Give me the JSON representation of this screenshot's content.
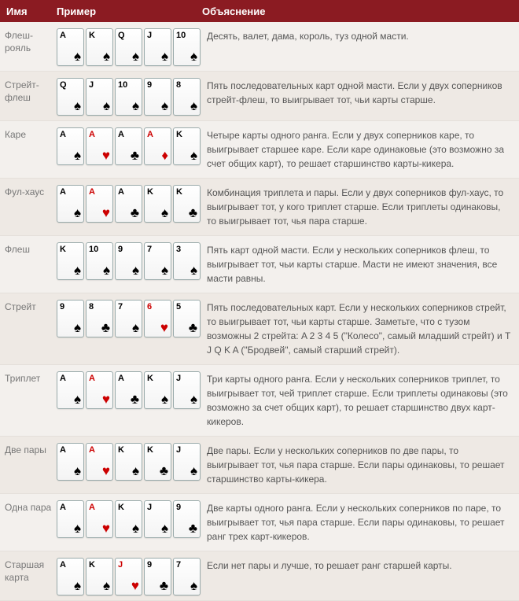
{
  "suits": {
    "s": "♠",
    "h": "♥",
    "d": "♦",
    "c": "♣"
  },
  "header": {
    "name": "Имя",
    "example": "Пример",
    "desc": "Объяснение"
  },
  "hands": [
    {
      "name": "Флеш-рояль",
      "cards": [
        {
          "r": "A",
          "s": "s"
        },
        {
          "r": "K",
          "s": "s"
        },
        {
          "r": "Q",
          "s": "s"
        },
        {
          "r": "J",
          "s": "s"
        },
        {
          "r": "10",
          "s": "s"
        }
      ],
      "desc": "Десять, валет, дама, король, туз одной масти."
    },
    {
      "name": "Стрейт-флеш",
      "cards": [
        {
          "r": "Q",
          "s": "s"
        },
        {
          "r": "J",
          "s": "s"
        },
        {
          "r": "10",
          "s": "s"
        },
        {
          "r": "9",
          "s": "s"
        },
        {
          "r": "8",
          "s": "s"
        }
      ],
      "desc": "Пять последовательных карт одной масти. Если у двух соперников стрейт-флеш, то выигрывает тот, чьи карты старше."
    },
    {
      "name": "Каре",
      "cards": [
        {
          "r": "A",
          "s": "s"
        },
        {
          "r": "A",
          "s": "h"
        },
        {
          "r": "A",
          "s": "c"
        },
        {
          "r": "A",
          "s": "d"
        },
        {
          "r": "K",
          "s": "s"
        }
      ],
      "desc": "Четыре карты одного ранга. Если у двух соперников каре, то выигрывает старшее каре. Если каре одинаковые (это возможно за счет общих карт), то решает старшинство карты-кикера."
    },
    {
      "name": "Фул-хаус",
      "cards": [
        {
          "r": "A",
          "s": "s"
        },
        {
          "r": "A",
          "s": "h"
        },
        {
          "r": "A",
          "s": "c"
        },
        {
          "r": "K",
          "s": "s"
        },
        {
          "r": "K",
          "s": "c"
        }
      ],
      "desc": "Комбинация триплета и пары. Если у двух соперников фул-хаус, то выигрывает тот, у кого триплет старше. Если триплеты одинаковы, то выигрывает тот, чья пара старше."
    },
    {
      "name": "Флеш",
      "cards": [
        {
          "r": "K",
          "s": "s"
        },
        {
          "r": "10",
          "s": "s"
        },
        {
          "r": "9",
          "s": "s"
        },
        {
          "r": "7",
          "s": "s"
        },
        {
          "r": "3",
          "s": "s"
        }
      ],
      "desc": "Пять карт одной масти. Если у нескольких соперников флеш, то выигрывает тот, чьи карты старше. Масти не имеют значения, все масти равны."
    },
    {
      "name": "Стрейт",
      "cards": [
        {
          "r": "9",
          "s": "s"
        },
        {
          "r": "8",
          "s": "c"
        },
        {
          "r": "7",
          "s": "s"
        },
        {
          "r": "6",
          "s": "h"
        },
        {
          "r": "5",
          "s": "c"
        }
      ],
      "desc": "Пять последовательных карт. Если у нескольких соперников стрейт, то выигрывает тот, чьи карты старше. Заметьте, что с тузом возможны 2 стрейта: A 2 3 4 5 (\"Колесо\", самый младший стрейт) и T J Q K A (\"Бродвей\", самый старший стрейт)."
    },
    {
      "name": "Триплет",
      "cards": [
        {
          "r": "A",
          "s": "s"
        },
        {
          "r": "A",
          "s": "h"
        },
        {
          "r": "A",
          "s": "c"
        },
        {
          "r": "K",
          "s": "s"
        },
        {
          "r": "J",
          "s": "s"
        }
      ],
      "desc": "Три карты одного ранга. Если у нескольких соперников триплет, то выигрывает тот, чей триплет старше. Если триплеты одинаковы (это возможно за счет общих карт), то решает старшинство двух карт-кикеров."
    },
    {
      "name": "Две пары",
      "cards": [
        {
          "r": "A",
          "s": "s"
        },
        {
          "r": "A",
          "s": "h"
        },
        {
          "r": "K",
          "s": "s"
        },
        {
          "r": "K",
          "s": "c"
        },
        {
          "r": "J",
          "s": "s"
        }
      ],
      "desc": "Две пары. Если у нескольких соперников по две пары, то выигрывает тот, чья пара старше. Если пары одинаковы, то решает старшинство карты-кикера."
    },
    {
      "name": "Одна пара",
      "cards": [
        {
          "r": "A",
          "s": "s"
        },
        {
          "r": "A",
          "s": "h"
        },
        {
          "r": "K",
          "s": "s"
        },
        {
          "r": "J",
          "s": "s"
        },
        {
          "r": "9",
          "s": "c"
        }
      ],
      "desc": "Две карты одного ранга. Если у нескольких соперников по паре, то выигрывает тот, чья пара старше. Если пары одинаковы, то решает ранг трех карт-кикеров."
    },
    {
      "name": "Старшая карта",
      "cards": [
        {
          "r": "A",
          "s": "s"
        },
        {
          "r": "K",
          "s": "s"
        },
        {
          "r": "J",
          "s": "h"
        },
        {
          "r": "9",
          "s": "c"
        },
        {
          "r": "7",
          "s": "s"
        }
      ],
      "desc": "Если нет пары и лучше, то решает ранг старшей карты."
    }
  ]
}
